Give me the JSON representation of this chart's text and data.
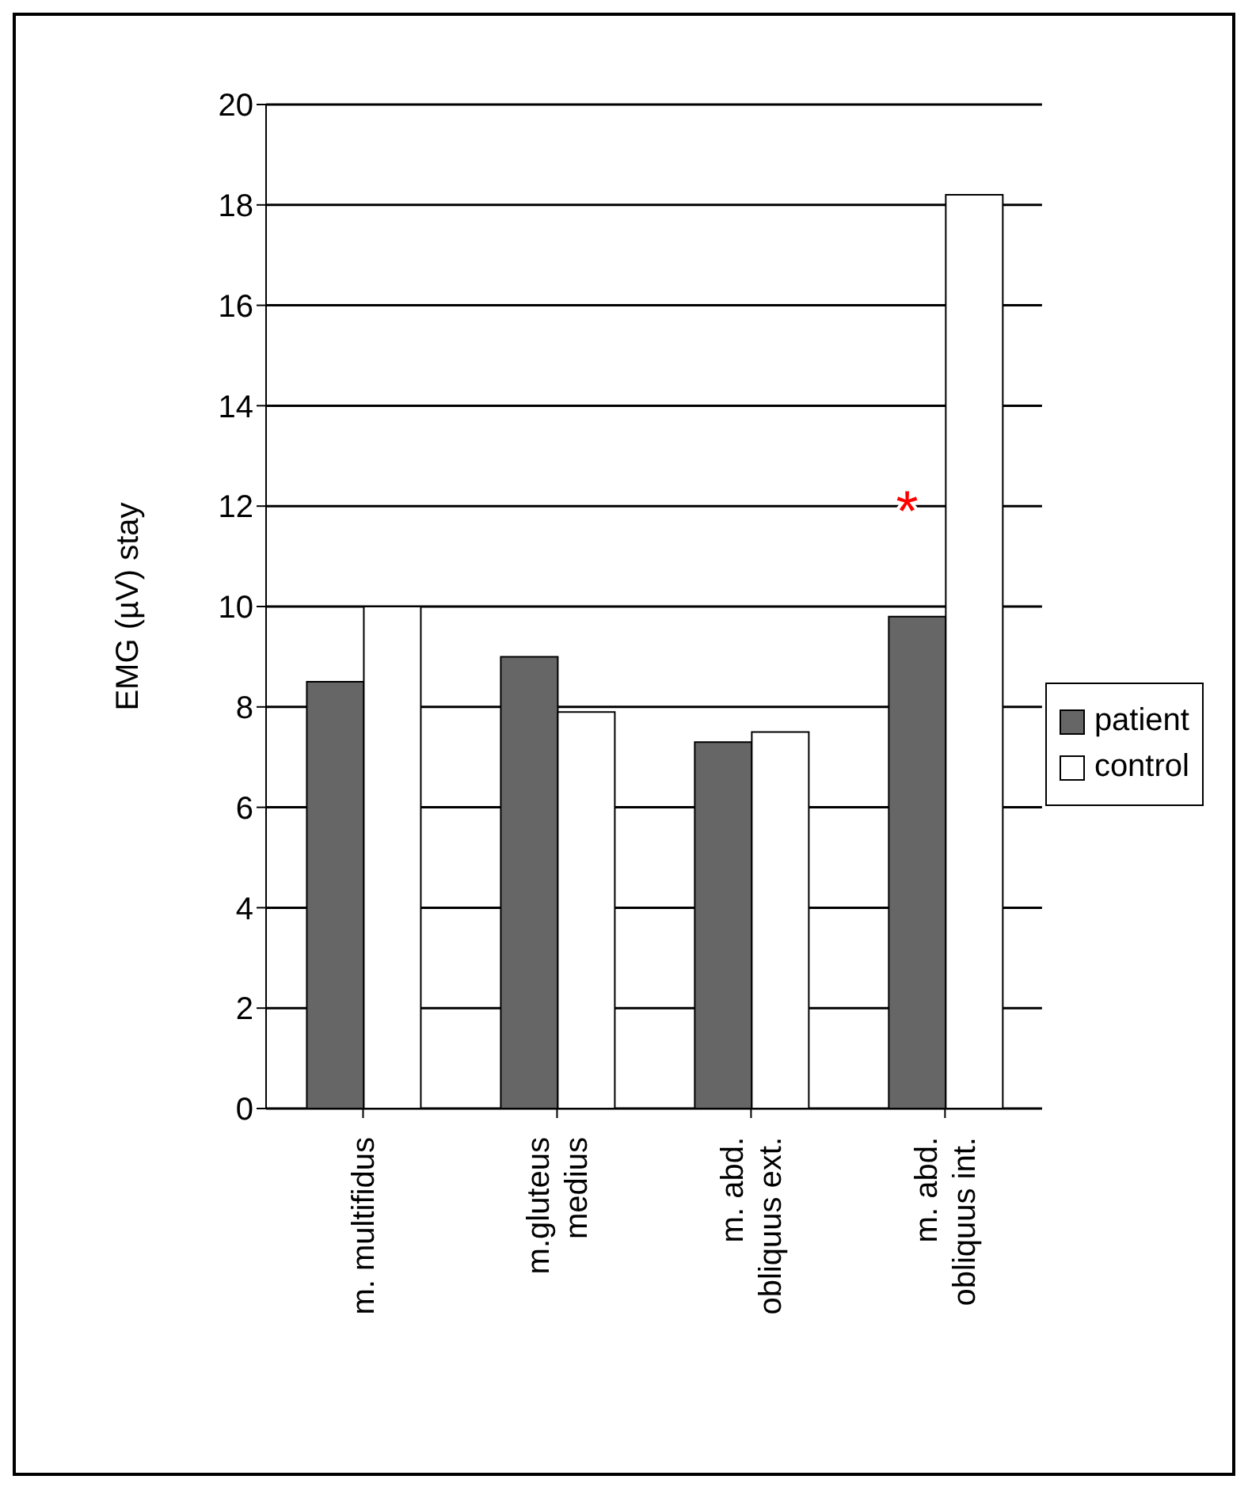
{
  "chart_data": {
    "type": "bar",
    "ylabel": "EMG (µV) stay",
    "categories": [
      "m. multifidus",
      "m.gluteus medius",
      "m. abd. obliquus ext.",
      "m. abd. obliquus int."
    ],
    "series": [
      {
        "name": "patient",
        "color": "#666666",
        "values": [
          8.5,
          9.0,
          7.3,
          9.8
        ]
      },
      {
        "name": "control",
        "color": "#ffffff",
        "values": [
          10.0,
          7.9,
          7.5,
          18.2
        ]
      }
    ],
    "ylim": [
      0,
      20
    ],
    "yticks": [
      0,
      2,
      4,
      6,
      8,
      10,
      12,
      14,
      16,
      18,
      20
    ],
    "grid": "y",
    "legend": "right",
    "annotations": [
      {
        "text": "*",
        "x": "m. abd. obliquus int.",
        "y": 12.1
      }
    ]
  }
}
